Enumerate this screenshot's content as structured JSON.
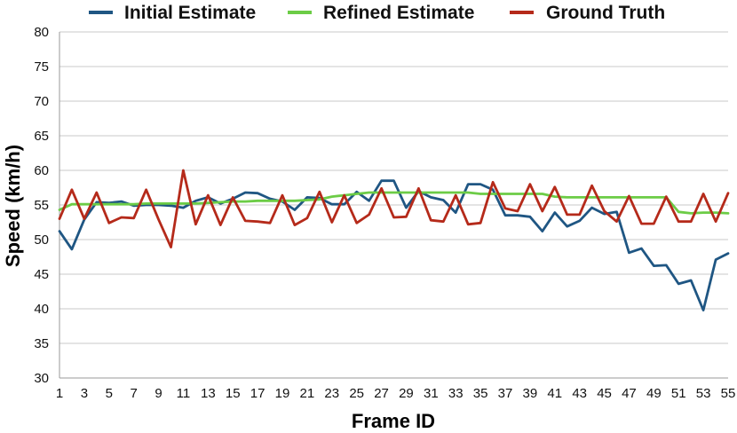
{
  "chart_data": {
    "type": "line",
    "title": "",
    "xlabel": "Frame ID",
    "ylabel": "Speed (km/h)",
    "ylim": [
      30,
      80
    ],
    "yticks": [
      30,
      35,
      40,
      45,
      50,
      55,
      60,
      65,
      70,
      75,
      80
    ],
    "xlim": [
      1,
      55
    ],
    "xticks": [
      1,
      3,
      5,
      7,
      9,
      11,
      13,
      15,
      17,
      19,
      21,
      23,
      25,
      27,
      29,
      31,
      33,
      35,
      37,
      39,
      41,
      43,
      45,
      47,
      49,
      51,
      53,
      55
    ],
    "grid": true,
    "legend_position": "top",
    "x": [
      1,
      2,
      3,
      4,
      5,
      6,
      7,
      8,
      9,
      10,
      11,
      12,
      13,
      14,
      15,
      16,
      17,
      18,
      19,
      20,
      21,
      22,
      23,
      24,
      25,
      26,
      27,
      28,
      29,
      30,
      31,
      32,
      33,
      34,
      35,
      36,
      37,
      38,
      39,
      40,
      41,
      42,
      43,
      44,
      45,
      46,
      47,
      48,
      49,
      50,
      51,
      52,
      53,
      54,
      55
    ],
    "series": [
      {
        "name": "Initial Estimate",
        "color": "#1f5683",
        "values": [
          51.2,
          48.6,
          52.9,
          55.4,
          55.3,
          55.5,
          54.9,
          55.0,
          55.0,
          54.9,
          54.6,
          55.6,
          56.1,
          55.2,
          55.9,
          56.8,
          56.7,
          55.9,
          55.5,
          54.3,
          56.1,
          56.0,
          55.1,
          55.1,
          56.9,
          55.6,
          58.5,
          58.5,
          54.6,
          57.0,
          56.1,
          55.7,
          53.9,
          58.0,
          58.0,
          57.2,
          53.5,
          53.5,
          53.3,
          51.2,
          53.9,
          51.9,
          52.7,
          54.6,
          53.7,
          54.0,
          48.1,
          48.7,
          46.2,
          46.3,
          43.6,
          44.1,
          39.8,
          47.1,
          48.0
        ]
      },
      {
        "name": "Refined Estimate",
        "color": "#6ccc46",
        "values": [
          54.3,
          55.1,
          55.1,
          55.1,
          55.1,
          55.1,
          55.1,
          55.2,
          55.2,
          55.2,
          55.2,
          55.2,
          55.3,
          55.4,
          55.5,
          55.5,
          55.6,
          55.6,
          55.6,
          55.6,
          55.7,
          55.8,
          56.2,
          56.4,
          56.6,
          56.8,
          56.8,
          56.8,
          56.8,
          56.8,
          56.8,
          56.8,
          56.8,
          56.8,
          56.6,
          56.6,
          56.6,
          56.6,
          56.6,
          56.6,
          56.2,
          56.1,
          56.1,
          56.1,
          56.1,
          56.1,
          56.1,
          56.1,
          56.1,
          56.1,
          54.0,
          53.8,
          53.9,
          53.9,
          53.8
        ]
      },
      {
        "name": "Ground Truth",
        "color": "#b52a1a",
        "values": [
          53.0,
          57.2,
          53.0,
          56.8,
          52.4,
          53.2,
          53.1,
          57.2,
          52.9,
          48.9,
          60.0,
          52.2,
          56.4,
          52.1,
          56.1,
          52.7,
          52.6,
          52.4,
          56.4,
          52.1,
          53.1,
          56.9,
          52.5,
          56.4,
          52.4,
          53.6,
          57.4,
          53.2,
          53.3,
          57.4,
          52.8,
          52.6,
          56.4,
          52.2,
          52.4,
          58.3,
          54.5,
          54.1,
          58.0,
          54.1,
          57.6,
          53.6,
          53.6,
          57.8,
          54.1,
          52.6,
          56.3,
          52.3,
          52.3,
          56.2,
          52.6,
          52.6,
          56.6,
          52.6,
          56.7
        ]
      }
    ]
  }
}
